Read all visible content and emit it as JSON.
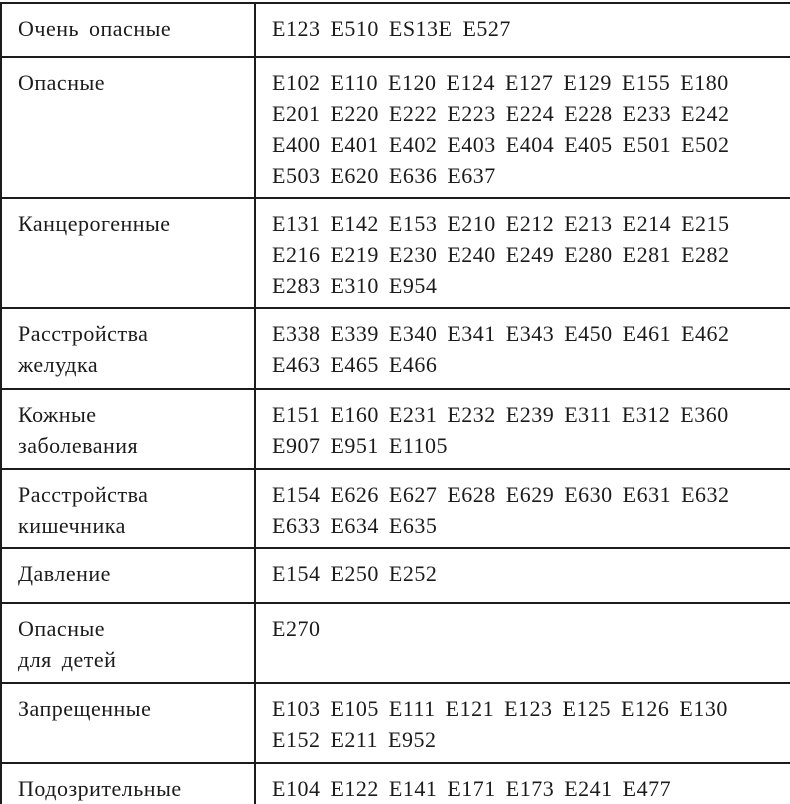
{
  "colors": {
    "background": "#ffffff",
    "text": "#1b1b1b",
    "border": "#1c1c1c"
  },
  "table": {
    "columns": [
      "category",
      "codes"
    ],
    "rows": [
      {
        "category": "Очень опасные",
        "codes": "E123 E510 ES13E E527"
      },
      {
        "category": "Опасные",
        "codes": "E102 E110 E120 E124 E127 E129 E155 E180\nE201 E220 E222 E223 E224 E228 E233 E242\nE400 E401 E402 E403 E404 E405 E501 E502\nE503 E620 E636 E637"
      },
      {
        "category": "Канцерогенные",
        "codes": "E131 E142 E153 E210 E212 E213 E214 E215\nE216 E219 E230 E240 E249 E280 E281 E282\nE283 E310 E954"
      },
      {
        "category": "Расстройства\nжелудка",
        "codes": "E338 E339 E340 E341 E343 E450 E461 E462\nE463 E465 E466"
      },
      {
        "category": "Кожные\nзаболевания",
        "codes": "E151 E160 E231 E232 E239 E311 E312 E360\nE907 E951 E1105"
      },
      {
        "category": "Расстройства\nкишечника",
        "codes": "E154 E626 E627 E628 E629 E630 E631 E632\nE633 E634 E635"
      },
      {
        "category": "Давление",
        "codes": "E154 E250 E252"
      },
      {
        "category": "Опасные\nдля детей",
        "codes": "E270"
      },
      {
        "category": "Запрещенные",
        "codes": "E103 E105 E111 E121 E123 E125 E126 E130\nE152 E211 E952"
      },
      {
        "category": "Подозрительные",
        "codes": "E104 E122 E141 E171 E173 E241 E477"
      }
    ]
  }
}
